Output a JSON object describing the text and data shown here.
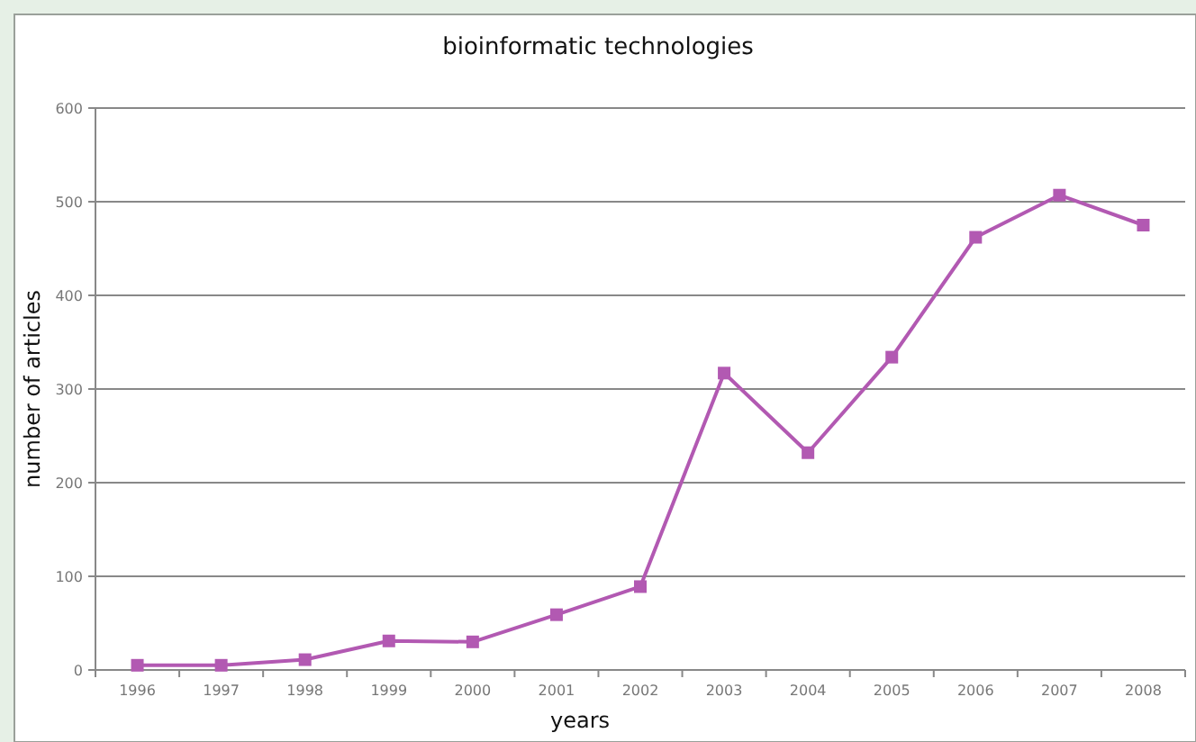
{
  "chart_data": {
    "type": "line",
    "title": "bioinformatic technologies",
    "xlabel": "years",
    "ylabel": "number of articles",
    "categories": [
      "1996",
      "1997",
      "1998",
      "1999",
      "2000",
      "2001",
      "2002",
      "2003",
      "2004",
      "2005",
      "2006",
      "2007",
      "2008"
    ],
    "series": [
      {
        "color": "#b259b2",
        "values": [
          5,
          5,
          11,
          31,
          30,
          59,
          89,
          317,
          232,
          334,
          462,
          507,
          475
        ]
      }
    ],
    "ylim": [
      0,
      600
    ],
    "yticks": [
      0,
      100,
      200,
      300,
      400,
      500,
      600
    ],
    "grid": "y",
    "marker": "square",
    "line_style": "solid"
  }
}
